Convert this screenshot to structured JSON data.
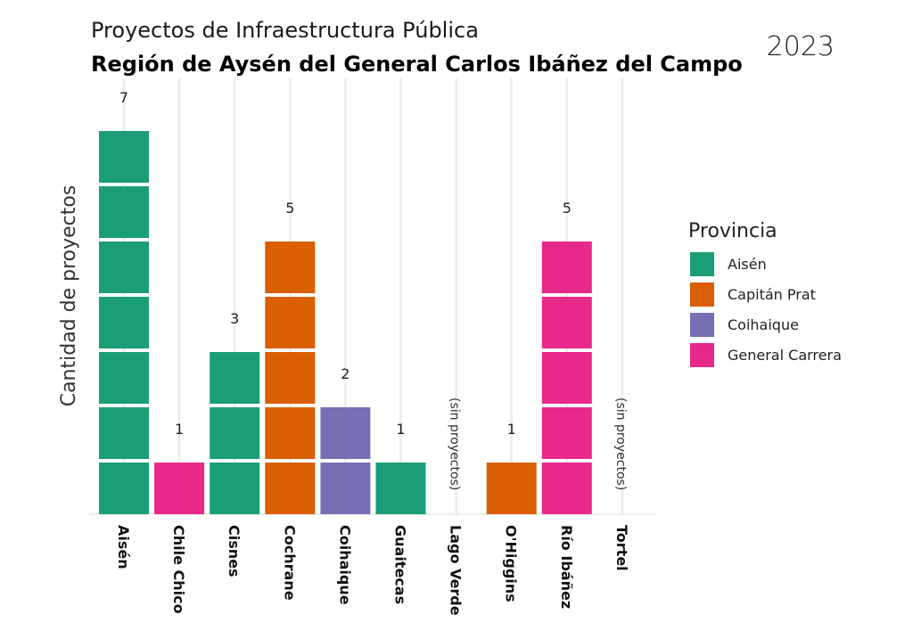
{
  "header": {
    "subtitle": "Proyectos de Infraestructura Pública",
    "title": "Región de Aysén del General Carlos Ibáñez del Campo",
    "year": "2023"
  },
  "chart_data": {
    "type": "bar",
    "style": "stacked unit blocks",
    "title": "Región de Aysén del General Carlos Ibáñez del Campo",
    "subtitle": "Proyectos de Infraestructura Pública",
    "ylabel": "Cantidad de proyectos",
    "xlabel": "",
    "categories": [
      "Aisén",
      "Chile Chico",
      "Cisnes",
      "Cochrane",
      "Coihaique",
      "Guaitecas",
      "Lago Verde",
      "O'Higgins",
      "Río Ibáñez",
      "Tortel"
    ],
    "values": [
      7,
      1,
      3,
      5,
      2,
      1,
      0,
      1,
      5,
      0
    ],
    "province": [
      "Aisén",
      "General Carrera",
      "Aisén",
      "Capitán Prat",
      "Coihaique",
      "Aisén",
      "",
      "Capitán Prat",
      "General Carrera",
      ""
    ],
    "empty_label": "(sin proyectos)",
    "legend": {
      "title": "Provincia",
      "position": "right",
      "entries": [
        {
          "name": "Aisén",
          "color": "#1b9e77"
        },
        {
          "name": "Capitán Prat",
          "color": "#d95f02"
        },
        {
          "name": "Coihaique",
          "color": "#7570b3"
        },
        {
          "name": "General Carrera",
          "color": "#e7298a"
        }
      ]
    },
    "ylim": [
      0,
      7
    ],
    "grid": "vertical major lines"
  }
}
